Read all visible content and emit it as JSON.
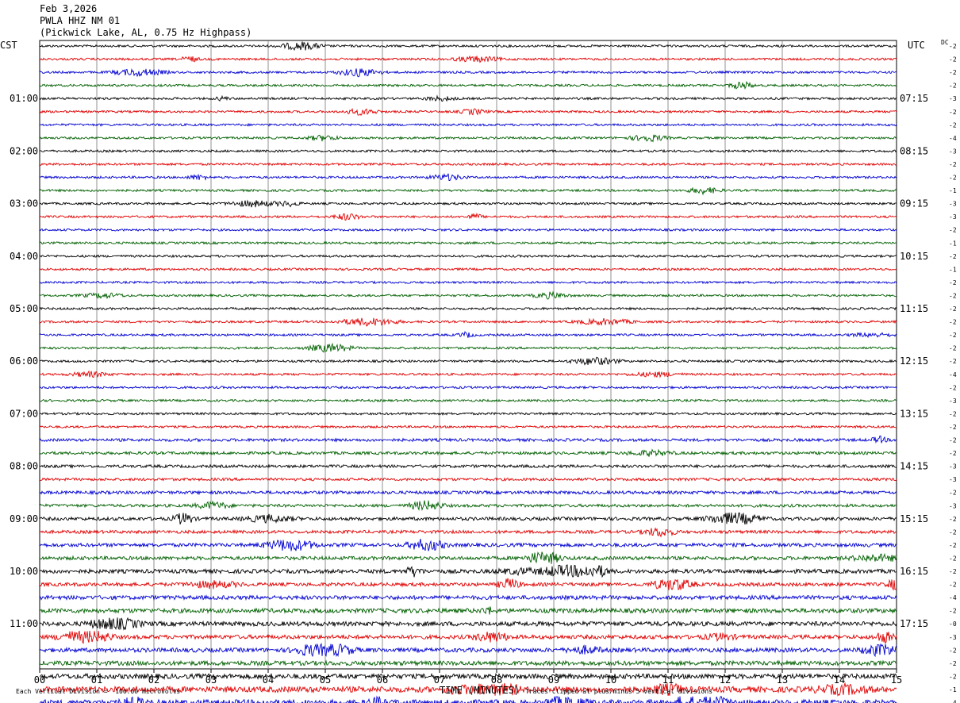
{
  "header": {
    "date": "Feb 3,2026",
    "station": "PWLA HHZ NM 01",
    "location": "(Pickwick Lake, AL, 0.75 Hz Highpass)"
  },
  "labels": {
    "left_tz": "CST",
    "right_tz": "UTC",
    "dc": "DC",
    "xlabel": "TIME (MINUTES)",
    "scale_note": "Each Vertical Division =  100.00 microvolts",
    "clip_note": "Traces clipped at plus/minus 5 vertical divisions"
  },
  "chart_data": {
    "type": "line",
    "title": "PWLA HHZ NM 01 (Pickwick Lake, AL, 0.75 Hz Highpass)",
    "xlabel": "TIME (MINUTES)",
    "x_ticks": [
      "00",
      "01",
      "02",
      "03",
      "04",
      "05",
      "06",
      "07",
      "08",
      "09",
      "10",
      "11",
      "12",
      "13",
      "14",
      "15"
    ],
    "xlim": [
      0,
      15
    ],
    "grid": true,
    "traces_per_hour": 4,
    "trace_colors": [
      "#000000",
      "#e00000",
      "#0000d0",
      "#006000"
    ],
    "left_hour_labels": [
      "01:00",
      "02:00",
      "03:00",
      "04:00",
      "05:00",
      "06:00",
      "07:00",
      "08:00",
      "09:00",
      "10:00",
      "11:00"
    ],
    "right_hour_labels": [
      "07:15",
      "08:15",
      "09:15",
      "10:15",
      "11:15",
      "12:15",
      "13:15",
      "14:15",
      "15:15",
      "16:15",
      "17:15"
    ],
    "dc_offsets": [
      "-2",
      "-2",
      "-2",
      "-2",
      "-3",
      "-2",
      "-2",
      "-4",
      "-3",
      "-2",
      "-2",
      "-1",
      "-3",
      "-3",
      "-2",
      "-1",
      "-2",
      "-1",
      "-2",
      "-2",
      "-2",
      "-2",
      "-2",
      "-2",
      "-2",
      "-4",
      "-2",
      "-3",
      "-2",
      "-2",
      "-2",
      "-2",
      "-3",
      "-3",
      "-2",
      "-3",
      "-2",
      "-2",
      "-2",
      "-2",
      "-2",
      "-2",
      "-4",
      "-2",
      "-0",
      "-3",
      "-2",
      "-2",
      "-2",
      "-1",
      "-4"
    ],
    "trace_amplitude": [
      1,
      1,
      1,
      1,
      1,
      1,
      1,
      1,
      1,
      1,
      1,
      1,
      1,
      1,
      1,
      1,
      1,
      1,
      1,
      1,
      1,
      1,
      1,
      1,
      1,
      1,
      1,
      1,
      1,
      1,
      1.3,
      1.3,
      1.3,
      1.2,
      1.4,
      1.3,
      1.5,
      1.4,
      1.6,
      1.6,
      1.8,
      1.6,
      1.8,
      2,
      2,
      1.8,
      1.9,
      2,
      2.2,
      2.6,
      2.6
    ]
  }
}
